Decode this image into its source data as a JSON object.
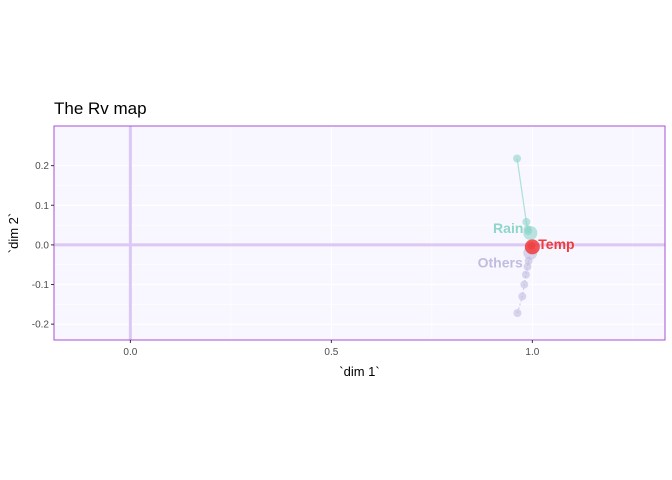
{
  "chart_data": {
    "type": "scatter",
    "title": "The Rv map",
    "xlabel": "`dim 1`",
    "ylabel": "`dim 2`",
    "xlim": [
      -0.19,
      1.33
    ],
    "ylim": [
      -0.24,
      0.3
    ],
    "x_ticks": [
      {
        "value": 0.0,
        "label": "0.0"
      },
      {
        "value": 0.5,
        "label": "0.5"
      },
      {
        "value": 1.0,
        "label": "1.0"
      }
    ],
    "y_ticks": [
      {
        "value": 0.2,
        "label": "0.2"
      },
      {
        "value": 0.1,
        "label": "0.1"
      },
      {
        "value": 0.0,
        "label": "0.0"
      },
      {
        "value": -0.1,
        "label": "-0.1"
      },
      {
        "value": -0.2,
        "label": "-0.2"
      }
    ],
    "reference_lines": {
      "x": 0,
      "y": 0
    },
    "colors": {
      "panel_background": "#f8f6ff",
      "panel_border": "#a94ed4",
      "reference_line": "#dcc8f4",
      "grid": "#ffffff"
    },
    "series": [
      {
        "name": "Rain",
        "color": "#8ed6c9",
        "label_position": {
          "x": 0.94,
          "y": 0.042
        },
        "main_point": {
          "x": 0.995,
          "y": 0.03
        },
        "points": [
          {
            "x": 0.962,
            "y": 0.218
          },
          {
            "x": 0.985,
            "y": 0.058
          },
          {
            "x": 0.988,
            "y": 0.04
          },
          {
            "x": 0.99,
            "y": 0.035
          }
        ]
      },
      {
        "name": "Others",
        "color": "#bfbde0",
        "label_position": {
          "x": 0.92,
          "y": -0.045
        },
        "main_point": {
          "x": 0.995,
          "y": -0.02
        },
        "points": [
          {
            "x": 0.963,
            "y": -0.172
          },
          {
            "x": 0.975,
            "y": -0.13
          },
          {
            "x": 0.98,
            "y": -0.1
          },
          {
            "x": 0.984,
            "y": -0.075
          },
          {
            "x": 0.988,
            "y": -0.055
          },
          {
            "x": 0.991,
            "y": -0.04
          }
        ]
      },
      {
        "name": "Temp",
        "color": "#f03b3b",
        "label_position": {
          "x": 1.06,
          "y": 0.002
        },
        "main_point": {
          "x": 1.0,
          "y": -0.005
        },
        "points": [
          {
            "x": 0.998,
            "y": -0.002
          }
        ]
      }
    ]
  }
}
